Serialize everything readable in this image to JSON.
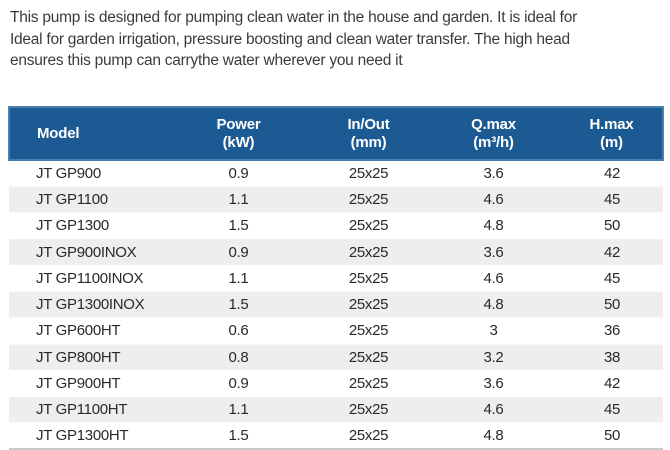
{
  "intro": {
    "line1": "This pump is designed for pumping clean water in the house and garden. It is ideal for",
    "line2": "Ideal for garden irrigation, pressure boosting and clean water transfer. The high head",
    "line3": "ensures this pump can carrythe water wherever you need it"
  },
  "table": {
    "columns": [
      {
        "label": "Model",
        "unit": ""
      },
      {
        "label": "Power",
        "unit": "(kW)"
      },
      {
        "label": "In/Out",
        "unit": "(mm)"
      },
      {
        "label": "Q.max",
        "unit": "(m³/h)"
      },
      {
        "label": "H.max",
        "unit": "(m)"
      }
    ],
    "rows": [
      {
        "model": "JT GP900",
        "power": "0.9",
        "inout": "25x25",
        "qmax": "3.6",
        "hmax": "42"
      },
      {
        "model": "JT GP1100",
        "power": "1.1",
        "inout": "25x25",
        "qmax": "4.6",
        "hmax": "45"
      },
      {
        "model": "JT GP1300",
        "power": "1.5",
        "inout": "25x25",
        "qmax": "4.8",
        "hmax": "50"
      },
      {
        "model": "JT GP900INOX",
        "power": "0.9",
        "inout": "25x25",
        "qmax": "3.6",
        "hmax": "42"
      },
      {
        "model": "JT GP1100INOX",
        "power": "1.1",
        "inout": "25x25",
        "qmax": "4.6",
        "hmax": "45"
      },
      {
        "model": "JT GP1300INOX",
        "power": "1.5",
        "inout": "25x25",
        "qmax": "4.8",
        "hmax": "50"
      },
      {
        "model": "JT GP600HT",
        "power": "0.6",
        "inout": "25x25",
        "qmax": "3",
        "hmax": "36"
      },
      {
        "model": "JT GP800HT",
        "power": "0.8",
        "inout": "25x25",
        "qmax": "3.2",
        "hmax": "38"
      },
      {
        "model": "JT GP900HT",
        "power": "0.9",
        "inout": "25x25",
        "qmax": "3.6",
        "hmax": "42"
      },
      {
        "model": "JT GP1100HT",
        "power": "1.1",
        "inout": "25x25",
        "qmax": "4.6",
        "hmax": "45"
      },
      {
        "model": "JT GP1300HT",
        "power": "1.5",
        "inout": "25x25",
        "qmax": "4.8",
        "hmax": "50"
      }
    ]
  },
  "colors": {
    "header_bg": "#1c5a94",
    "header_border": "#467fb0",
    "header_text": "#ffffff",
    "stripe_bg": "#eeeeef",
    "table_text": "#29292b",
    "intro_text": "#3b3b3d"
  }
}
